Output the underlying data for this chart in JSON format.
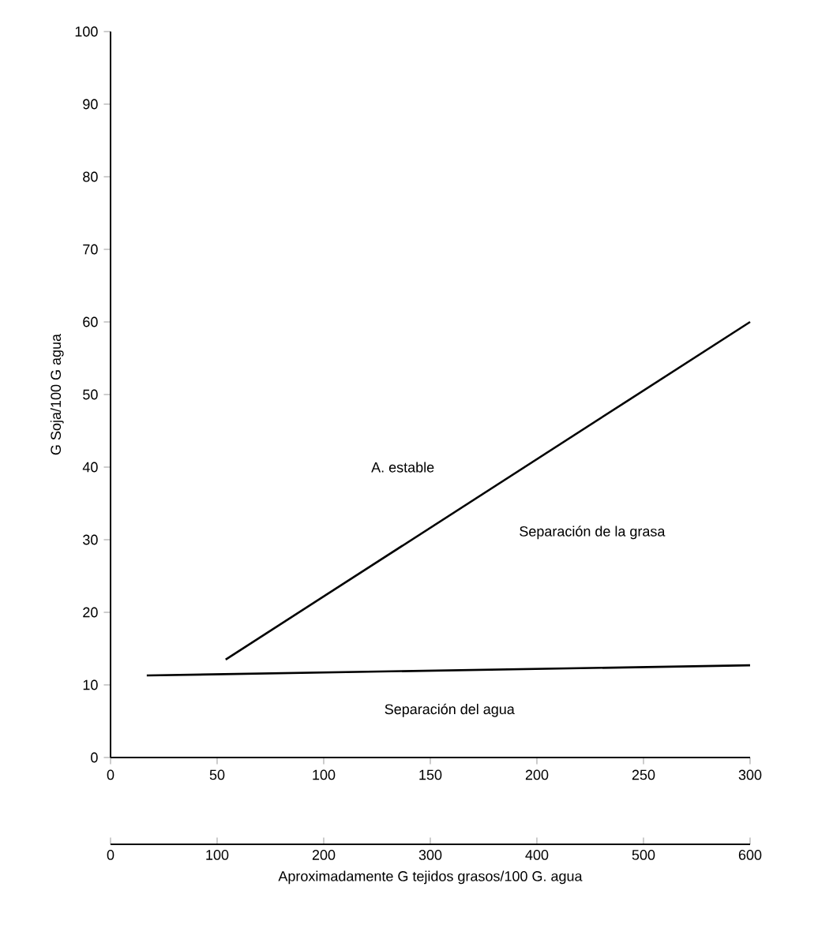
{
  "chart_data": {
    "type": "line",
    "ylabel": "G Soja/100 G agua",
    "x2label": "Aproximadamente G tejidos grasos/100 G. agua",
    "xlim": [
      0,
      300
    ],
    "xticks": [
      0,
      50,
      100,
      150,
      200,
      250,
      300
    ],
    "ylim": [
      0,
      100
    ],
    "yticks": [
      0,
      10,
      20,
      30,
      40,
      50,
      60,
      70,
      80,
      90,
      100
    ],
    "x2lim": [
      0,
      600
    ],
    "x2ticks": [
      0,
      100,
      200,
      300,
      400,
      500,
      600
    ],
    "series": [
      {
        "color": "#000000",
        "x": [
          54,
          300
        ],
        "values": [
          13.5,
          60
        ]
      },
      {
        "color": "#000000",
        "x": [
          17,
          300
        ],
        "values": [
          11.3,
          12.7
        ]
      }
    ],
    "annotations": [
      "A. estable",
      "Separación de la grasa",
      "Separación del agua"
    ],
    "grid": false,
    "marker": "none",
    "line_style": "solid"
  }
}
